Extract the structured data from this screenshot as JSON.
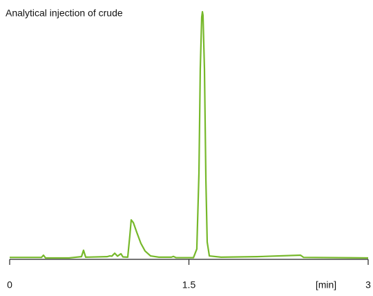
{
  "chart_data": {
    "type": "line",
    "title": "Analytical injection of crude",
    "x_label": "[min]",
    "color": "#76b82a",
    "xlim": [
      0,
      3
    ],
    "xticks": [
      0,
      1.5,
      3
    ],
    "x": [
      0,
      0.266,
      0.283,
      0.3,
      0.497,
      0.601,
      0.618,
      0.636,
      0.815,
      0.838,
      0.855,
      0.879,
      0.902,
      0.931,
      0.948,
      0.988,
      1.006,
      1.017,
      1.035,
      1.064,
      1.098,
      1.133,
      1.179,
      1.249,
      1.353,
      1.37,
      1.393,
      1.538,
      1.566,
      1.584,
      1.595,
      1.607,
      1.613,
      1.618,
      1.63,
      1.642,
      1.653,
      1.671,
      1.769,
      2.069,
      2.434,
      2.46,
      3.0
    ],
    "values": [
      0.5,
      0.5,
      1.4,
      0.3,
      0.3,
      0.8,
      3.4,
      0.6,
      0.8,
      1.1,
      1.0,
      2.2,
      1.0,
      2.0,
      0.7,
      0.6,
      9.5,
      15.7,
      14.6,
      10.6,
      6.2,
      3.1,
      1.1,
      0.6,
      0.6,
      0.9,
      0.4,
      0.4,
      3.9,
      34.7,
      76.8,
      97.8,
      100,
      98.6,
      76.8,
      31.9,
      6.7,
      1.1,
      0.6,
      0.8,
      1.4,
      0.5,
      0.3
    ]
  }
}
